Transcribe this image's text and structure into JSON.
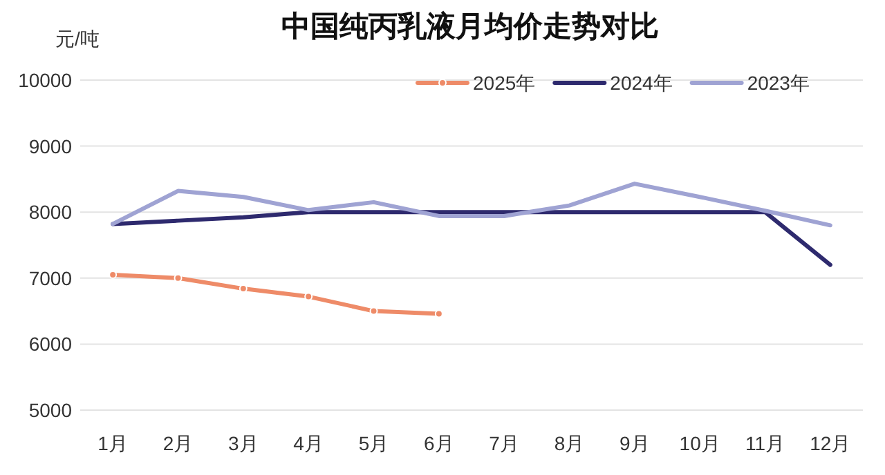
{
  "chart_data": {
    "type": "line",
    "title": "中国纯丙乳液月均价走势对比",
    "ylabel": "元/吨",
    "categories": [
      "1月",
      "2月",
      "3月",
      "4月",
      "5月",
      "6月",
      "7月",
      "8月",
      "9月",
      "10月",
      "11月",
      "12月"
    ],
    "series": [
      {
        "name": "2025年",
        "color": "#ee8b68",
        "marker": "circle",
        "values": [
          7050,
          7000,
          6840,
          6720,
          6500,
          6460,
          null,
          null,
          null,
          null,
          null,
          null
        ]
      },
      {
        "name": "2024年",
        "color": "#2e2a6e",
        "values": [
          7820,
          7870,
          7920,
          8000,
          8000,
          8000,
          8000,
          8000,
          8000,
          8000,
          8000,
          7200
        ]
      },
      {
        "name": "2023年",
        "color": "#9fa3d3",
        "values": [
          7820,
          8320,
          8230,
          8030,
          8150,
          7940,
          7940,
          8100,
          8430,
          8230,
          8020,
          7800
        ]
      }
    ],
    "ylim": [
      5000,
      10000
    ],
    "yticks": [
      5000,
      6000,
      7000,
      8000,
      9000,
      10000
    ],
    "grid": "y",
    "legend": "top right"
  }
}
